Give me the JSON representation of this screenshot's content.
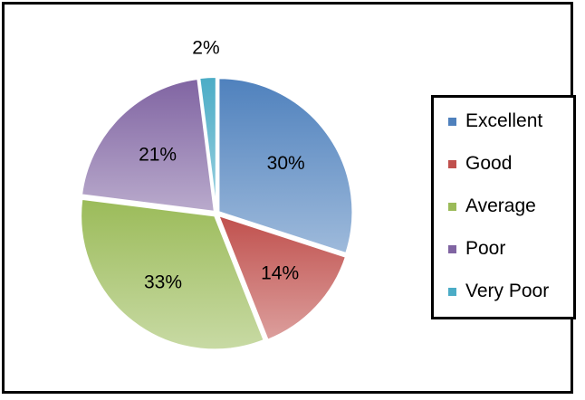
{
  "chart_data": {
    "type": "pie",
    "title": "",
    "start_angle_deg": -90,
    "direction": "clockwise",
    "slices": [
      {
        "label": "Excellent",
        "value": 30,
        "display": "30%",
        "color": "#4f81bd"
      },
      {
        "label": "Good",
        "value": 14,
        "display": "14%",
        "color": "#c0504d"
      },
      {
        "label": "Average",
        "value": 33,
        "display": "33%",
        "color": "#9bbb59"
      },
      {
        "label": "Poor",
        "value": 21,
        "display": "21%",
        "color": "#8064a2"
      },
      {
        "label": "Very Poor",
        "value": 2,
        "display": "2%",
        "color": "#4bacc6"
      }
    ],
    "legend": {
      "position": "right",
      "entries": [
        "Excellent",
        "Good",
        "Average",
        "Poor",
        "Very Poor"
      ]
    },
    "data_labels": true,
    "exploded": true
  }
}
